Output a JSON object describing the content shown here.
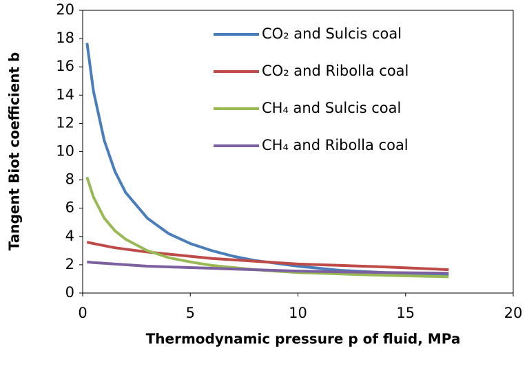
{
  "chart_data": {
    "type": "line",
    "xlabel": "Thermodynamic pressure p of fluid, MPa",
    "ylabel": "Tangent Biot coefficient b",
    "x": [
      0.2,
      0.5,
      1,
      1.5,
      2,
      3,
      4,
      5,
      6,
      7,
      8,
      10,
      12,
      14,
      17
    ],
    "series": [
      {
        "name": "CO₂ and Sulcis coal",
        "color": "#4a7ebb",
        "values": [
          17.7,
          14.3,
          10.8,
          8.6,
          7.1,
          5.3,
          4.2,
          3.5,
          3.0,
          2.6,
          2.3,
          1.9,
          1.6,
          1.45,
          1.3
        ]
      },
      {
        "name": "CO₂ and Ribolla coal",
        "color": "#be4b48",
        "values": [
          3.6,
          3.5,
          3.35,
          3.2,
          3.1,
          2.9,
          2.75,
          2.6,
          2.45,
          2.35,
          2.25,
          2.05,
          1.95,
          1.85,
          1.65
        ]
      },
      {
        "name": "CH₄ and Sulcis coal",
        "color": "#98b954",
        "values": [
          8.2,
          6.8,
          5.3,
          4.4,
          3.8,
          3.0,
          2.5,
          2.2,
          1.95,
          1.8,
          1.65,
          1.45,
          1.35,
          1.25,
          1.15
        ]
      },
      {
        "name": "CH₄ and Ribolla coal",
        "color": "#7d60a0",
        "values": [
          2.2,
          2.15,
          2.1,
          2.05,
          2.0,
          1.9,
          1.85,
          1.8,
          1.75,
          1.7,
          1.65,
          1.55,
          1.5,
          1.45,
          1.4
        ]
      }
    ],
    "xlim": [
      0,
      20
    ],
    "xticks": [
      0,
      5,
      10,
      15,
      20
    ],
    "ylim": [
      0,
      20
    ],
    "yticks": [
      0,
      2,
      4,
      6,
      8,
      10,
      12,
      14,
      16,
      18,
      20
    ],
    "grid": false
  }
}
